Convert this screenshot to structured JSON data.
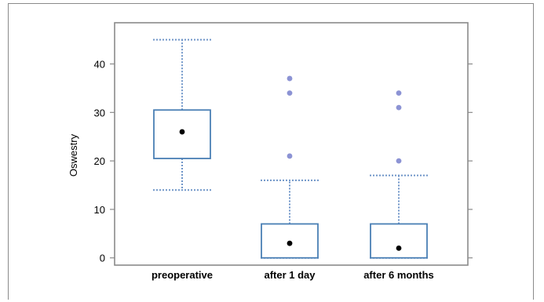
{
  "chart_data": {
    "type": "box",
    "title": "",
    "xlabel": "",
    "ylabel": "Oswestry",
    "ylim": [
      -1.5,
      48.5
    ],
    "yticks": [
      0,
      10,
      20,
      30,
      40
    ],
    "yticklabels": [
      "0",
      "10",
      "20",
      "30",
      "40"
    ],
    "categories": [
      "preoperative",
      "after 1 day",
      "after 6 months"
    ],
    "boxes": [
      {
        "whisker_low": 14,
        "q1": 20.5,
        "median": 26,
        "q3": 30.5,
        "whisker_high": 45,
        "outliers": []
      },
      {
        "whisker_low": 0,
        "q1": 0,
        "median": 3,
        "q3": 7,
        "whisker_high": 16,
        "outliers": [
          21,
          34,
          37
        ]
      },
      {
        "whisker_low": 0,
        "q1": 0,
        "median": 2,
        "q3": 7,
        "whisker_high": 17,
        "outliers": [
          20,
          31,
          34
        ]
      }
    ],
    "grid": false,
    "legend": "none",
    "colors": {
      "box": "#4a7fb5",
      "whisker": "#6f95c8",
      "outlier": "#8c93d4",
      "median_marker": "#000000",
      "axis": "#8a8a8a"
    }
  }
}
